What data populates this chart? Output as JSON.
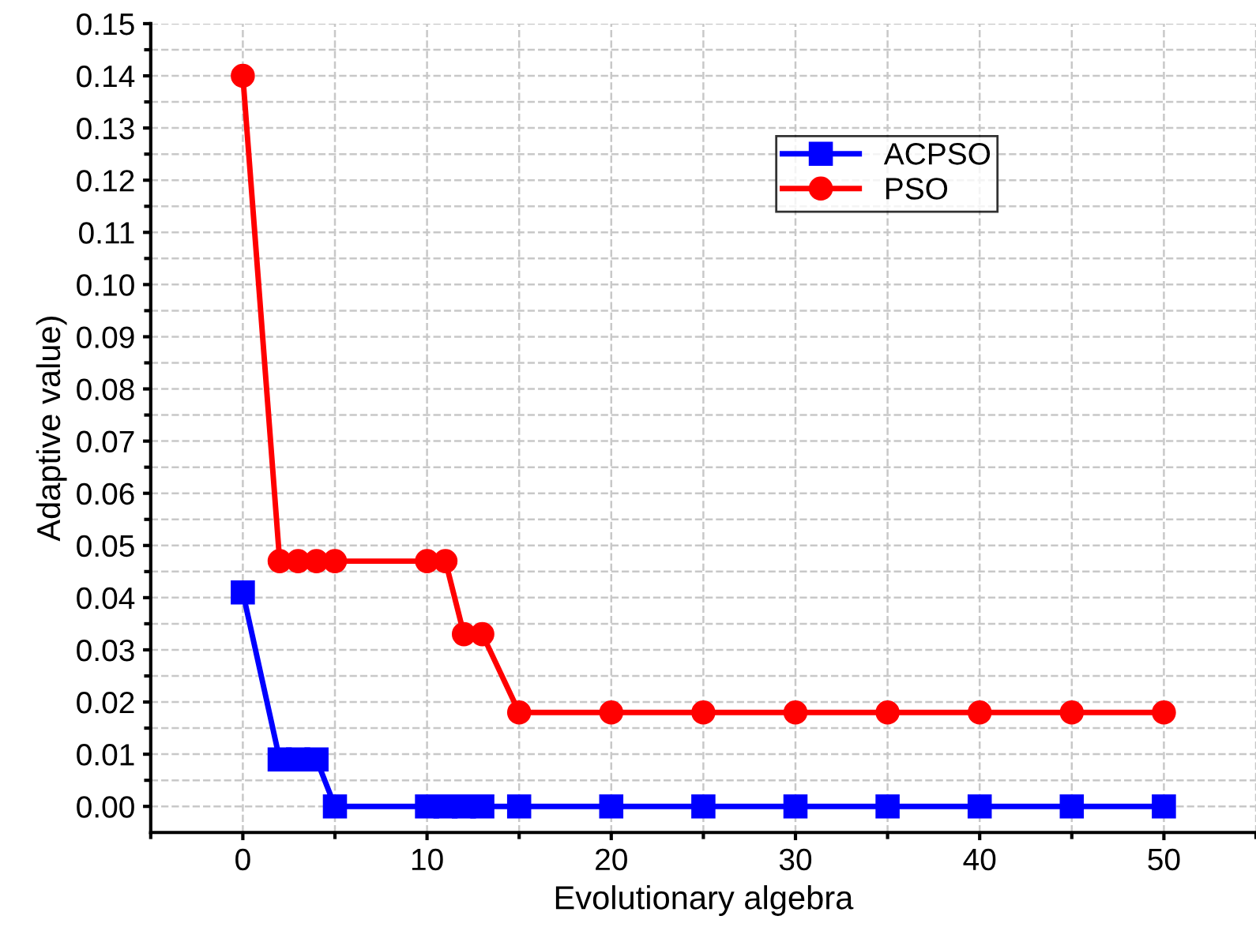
{
  "chart_data": {
    "type": "line",
    "xlabel": "Evolutionary algebra",
    "ylabel": "Adaptive value)",
    "series": [
      {
        "name": "ACPSO",
        "color": "#0000ff",
        "marker": "square",
        "x": [
          0,
          2,
          3,
          4,
          5,
          10,
          11,
          12,
          13,
          15,
          20,
          25,
          30,
          35,
          40,
          45,
          50
        ],
        "values": [
          0.041,
          0.009,
          0.009,
          0.009,
          0,
          0,
          0,
          0,
          0,
          0,
          0,
          0,
          0,
          0,
          0,
          0,
          0
        ]
      },
      {
        "name": "PSO",
        "color": "#ff0000",
        "marker": "circle",
        "x": [
          0,
          2,
          3,
          4,
          5,
          10,
          11,
          12,
          13,
          15,
          20,
          25,
          30,
          35,
          40,
          45,
          50
        ],
        "values": [
          0.14,
          0.047,
          0.047,
          0.047,
          0.047,
          0.047,
          0.047,
          0.033,
          0.033,
          0.018,
          0.018,
          0.018,
          0.018,
          0.018,
          0.018,
          0.018,
          0.018
        ]
      }
    ],
    "xlim": [
      -5,
      55
    ],
    "ylim": [
      -0.005,
      0.15
    ],
    "xticks": [
      {
        "value": -5,
        "label": null
      },
      0,
      {
        "value": 5,
        "label": null
      },
      10,
      {
        "value": 15,
        "label": null
      },
      20,
      {
        "value": 25,
        "label": null
      },
      30,
      {
        "value": 35,
        "label": null
      },
      40,
      {
        "value": 45,
        "label": null
      },
      50,
      {
        "value": 55,
        "label": null
      }
    ],
    "yticks": [
      {
        "value": 0,
        "label": "0.00"
      },
      {
        "value": 0.005,
        "label": null
      },
      {
        "value": 0.01,
        "label": "0.01"
      },
      {
        "value": 0.015,
        "label": null
      },
      {
        "value": 0.02,
        "label": "0.02"
      },
      {
        "value": 0.025,
        "label": null
      },
      {
        "value": 0.03,
        "label": "0.03"
      },
      {
        "value": 0.035,
        "label": null
      },
      {
        "value": 0.04,
        "label": "0.04"
      },
      {
        "value": 0.045,
        "label": null
      },
      {
        "value": 0.05,
        "label": "0.05"
      },
      {
        "value": 0.055,
        "label": null
      },
      {
        "value": 0.06,
        "label": "0.06"
      },
      {
        "value": 0.065,
        "label": null
      },
      {
        "value": 0.07,
        "label": "0.07"
      },
      {
        "value": 0.075,
        "label": null
      },
      {
        "value": 0.08,
        "label": "0.08"
      },
      {
        "value": 0.085,
        "label": null
      },
      {
        "value": 0.09,
        "label": "0.09"
      },
      {
        "value": 0.095,
        "label": null
      },
      {
        "value": 0.1,
        "label": "0.10"
      },
      {
        "value": 0.105,
        "label": null
      },
      {
        "value": 0.11,
        "label": "0.11"
      },
      {
        "value": 0.115,
        "label": null
      },
      {
        "value": 0.12,
        "label": "0.12"
      },
      {
        "value": 0.125,
        "label": null
      },
      {
        "value": 0.13,
        "label": "0.13"
      },
      {
        "value": 0.135,
        "label": null
      },
      {
        "value": 0.14,
        "label": "0.14"
      },
      {
        "value": 0.145,
        "label": null
      },
      {
        "value": 0.15,
        "label": "0.15"
      }
    ],
    "grid": true,
    "legend": "top right",
    "line_style": "solid"
  }
}
